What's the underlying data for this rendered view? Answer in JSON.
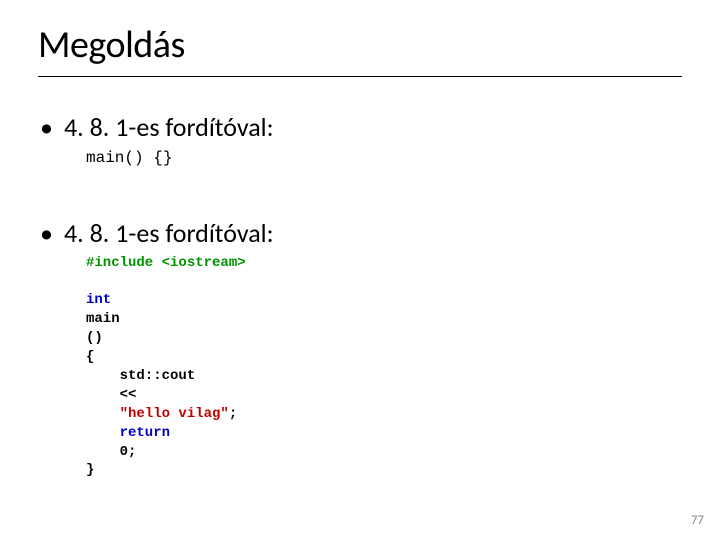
{
  "title": "Megoldás",
  "bullet1": "4. 8. 1-es fordítóval:",
  "code1": "main() {}",
  "bullet2": "4. 8. 1-es fordítóval:",
  "code2": {
    "include_kw": "#include",
    "include_hdr": "<iostream>",
    "l_int": "int",
    "l_main": "main",
    "l_paren": "()",
    "l_obrace": "{",
    "l_cout": "    std::cout",
    "l_shift": "    <<",
    "l_str_open": "    ",
    "str": "\"hello vilag\"",
    "semi1": ";",
    "l_return": "    return",
    "l_zero": "    0",
    "semi2": ";",
    "l_cbrace": "}"
  },
  "pageNumber": "77",
  "colors": {
    "green": "#009300",
    "blue": "#0000c0",
    "red": "#c00000",
    "text": "#000000",
    "pageNum": "#888888",
    "bg": "#ffffff"
  },
  "fontsizes": {
    "title": 38,
    "bullet": 26,
    "code1": 16,
    "code2": 14,
    "pageNum": 13
  }
}
